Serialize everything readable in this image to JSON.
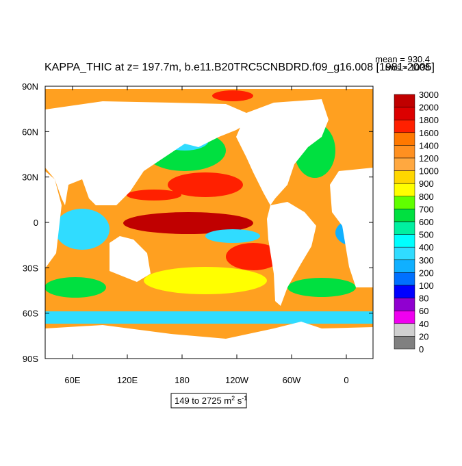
{
  "title": "KAPPA_THIC at z= 197.7m, b.e11.B20TRC5CNBDRD.f09_g16.008 [1981-2005]",
  "stats": [
    "mean = 930.4",
    "rms = 1038"
  ],
  "y_axis_labels": [
    "90N",
    "60N",
    "30N",
    "0",
    "30S",
    "60S",
    "90S"
  ],
  "x_axis_labels": [
    "60E",
    "120E",
    "180",
    "120W",
    "60W",
    "0"
  ],
  "colorbar": {
    "labels": [
      "3000",
      "2000",
      "1800",
      "1600",
      "1400",
      "1200",
      "1000",
      "900",
      "800",
      "700",
      "600",
      "500",
      "400",
      "300",
      "200",
      "100",
      "80",
      "60",
      "40",
      "20",
      "0"
    ],
    "colors": [
      "#c00000",
      "#dc0000",
      "#ff2000",
      "#ff7800",
      "#ff9020",
      "#ffa840",
      "#ffd700",
      "#ffff00",
      "#60ff00",
      "#00e040",
      "#00f0a0",
      "#00ffff",
      "#30dcff",
      "#10b0ff",
      "#0070ff",
      "#0000ff",
      "#9000d0",
      "#f000f0",
      "#d0d0d0",
      "#808080"
    ]
  },
  "range_label": {
    "text": "149 to 2725 m",
    "exp1": "2",
    "unit2": " s",
    "exp2": "-1"
  }
}
